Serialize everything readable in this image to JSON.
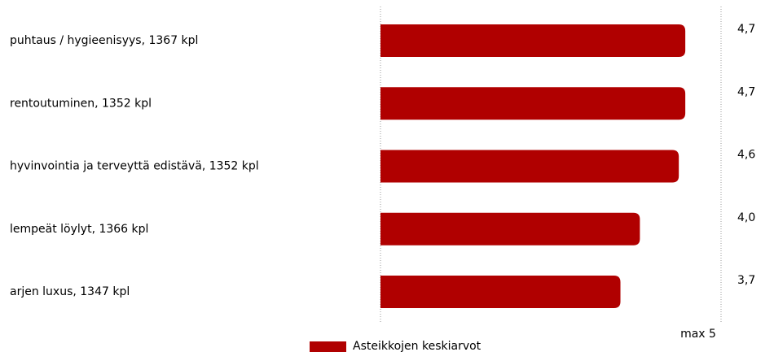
{
  "chart_data": {
    "type": "bar",
    "orientation": "horizontal",
    "categories": [
      "puhtaus / hygieenisyys, 1367 kpl",
      "rentoutuminen, 1352 kpl",
      "hyvinvointia ja terveyttä edistävä, 1352 kpl",
      "lempeät löylyt, 1366 kpl",
      "arjen luxus, 1347 kpl"
    ],
    "series": [
      {
        "name": "Asteikkojen keskiarvot",
        "color": "#b00000",
        "values": [
          4.7,
          4.7,
          4.6,
          4.0,
          3.7
        ],
        "value_labels": [
          "4,7",
          "4,7",
          "4,6",
          "4,0",
          "3,7"
        ]
      }
    ],
    "xlim": [
      0,
      5
    ],
    "xticks": [
      {
        "value": 5,
        "label": "max  5"
      }
    ]
  }
}
